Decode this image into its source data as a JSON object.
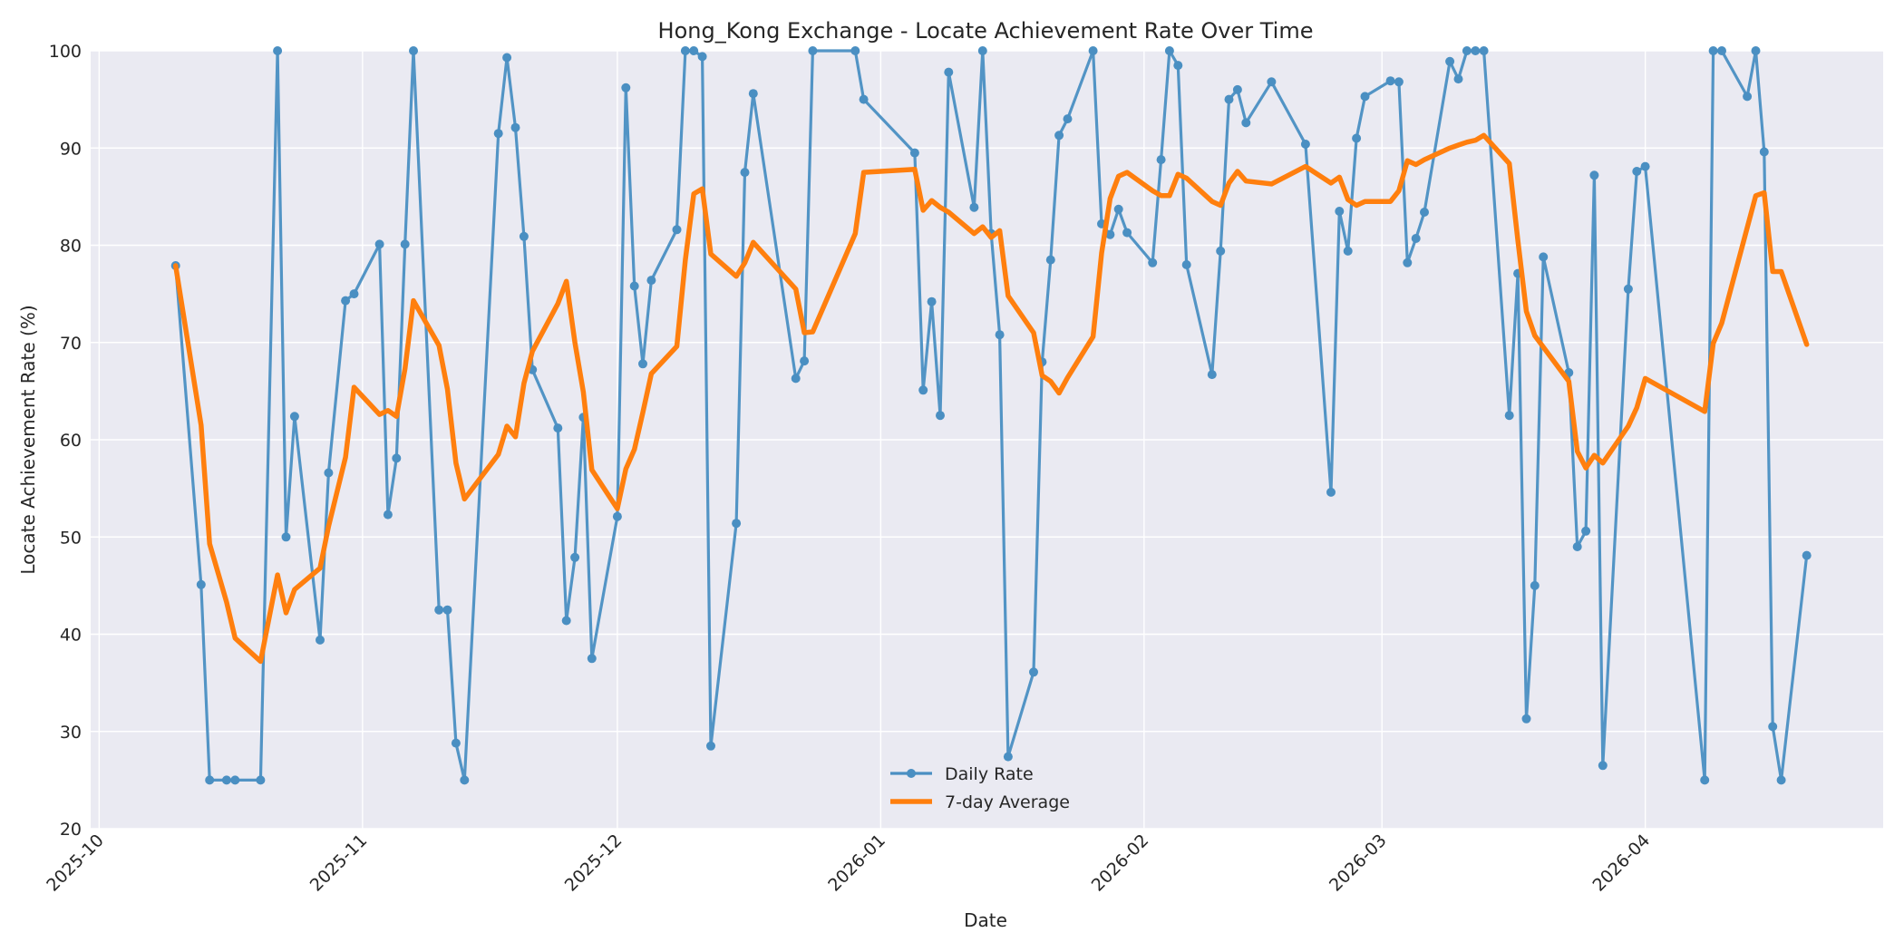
{
  "chart_data": {
    "type": "line",
    "title": "Hong_Kong Exchange - Locate Achievement Rate Over Time",
    "xlabel": "Date",
    "ylabel": "Locate Achievement Rate (%)",
    "ylim": [
      20,
      100
    ],
    "yticks": [
      "20",
      "30",
      "40",
      "50",
      "60",
      "70",
      "80",
      "90",
      "100"
    ],
    "xlim": [
      "2025-09-30",
      "2026-04-29"
    ],
    "xticks": [
      {
        "date": "2025-10-01",
        "label": "2025-10"
      },
      {
        "date": "2025-11-01",
        "label": "2025-11"
      },
      {
        "date": "2025-12-01",
        "label": "2025-12"
      },
      {
        "date": "2026-01-01",
        "label": "2026-01"
      },
      {
        "date": "2026-02-01",
        "label": "2026-02"
      },
      {
        "date": "2026-03-01",
        "label": "2026-03"
      },
      {
        "date": "2026-04-01",
        "label": "2026-04"
      }
    ],
    "grid": true,
    "legend": "bottom-center",
    "series": [
      {
        "name": "Daily Rate",
        "color": "#4a8fc2",
        "marker": "circle",
        "points": [
          [
            "2025-10-10",
            77.9
          ],
          [
            "2025-10-13",
            45.1
          ],
          [
            "2025-10-14",
            25.0
          ],
          [
            "2025-10-16",
            25.0
          ],
          [
            "2025-10-17",
            25.0
          ],
          [
            "2025-10-20",
            25.0
          ],
          [
            "2025-10-22",
            100.0
          ],
          [
            "2025-10-23",
            50.0
          ],
          [
            "2025-10-24",
            62.4
          ],
          [
            "2025-10-27",
            39.4
          ],
          [
            "2025-10-28",
            56.6
          ],
          [
            "2025-10-30",
            74.3
          ],
          [
            "2025-10-31",
            75.0
          ],
          [
            "2025-11-03",
            80.1
          ],
          [
            "2025-11-04",
            52.3
          ],
          [
            "2025-11-05",
            58.1
          ],
          [
            "2025-11-06",
            80.1
          ],
          [
            "2025-11-07",
            100.0
          ],
          [
            "2025-11-10",
            42.5
          ],
          [
            "2025-11-11",
            42.5
          ],
          [
            "2025-11-12",
            28.8
          ],
          [
            "2025-11-13",
            25.0
          ],
          [
            "2025-11-17",
            91.5
          ],
          [
            "2025-11-18",
            99.3
          ],
          [
            "2025-11-19",
            92.1
          ],
          [
            "2025-11-20",
            80.9
          ],
          [
            "2025-11-21",
            67.2
          ],
          [
            "2025-11-24",
            61.2
          ],
          [
            "2025-11-25",
            41.4
          ],
          [
            "2025-11-26",
            47.9
          ],
          [
            "2025-11-27",
            62.3
          ],
          [
            "2025-11-28",
            37.5
          ],
          [
            "2025-12-01",
            52.1
          ],
          [
            "2025-12-02",
            96.2
          ],
          [
            "2025-12-03",
            75.8
          ],
          [
            "2025-12-04",
            67.8
          ],
          [
            "2025-12-05",
            76.4
          ],
          [
            "2025-12-08",
            81.6
          ],
          [
            "2025-12-09",
            100.0
          ],
          [
            "2025-12-10",
            100.0
          ],
          [
            "2025-12-11",
            99.4
          ],
          [
            "2025-12-12",
            28.5
          ],
          [
            "2025-12-15",
            51.4
          ],
          [
            "2025-12-16",
            87.5
          ],
          [
            "2025-12-17",
            95.6
          ],
          [
            "2025-12-22",
            66.3
          ],
          [
            "2025-12-23",
            68.1
          ],
          [
            "2025-12-24",
            100.0
          ],
          [
            "2025-12-29",
            100.0
          ],
          [
            "2025-12-30",
            95.0
          ],
          [
            "2026-01-05",
            89.5
          ],
          [
            "2026-01-06",
            65.1
          ],
          [
            "2026-01-07",
            74.2
          ],
          [
            "2026-01-08",
            62.5
          ],
          [
            "2026-01-09",
            97.8
          ],
          [
            "2026-01-12",
            83.9
          ],
          [
            "2026-01-13",
            100.0
          ],
          [
            "2026-01-14",
            81.2
          ],
          [
            "2026-01-15",
            70.8
          ],
          [
            "2026-01-16",
            27.4
          ],
          [
            "2026-01-19",
            36.1
          ],
          [
            "2026-01-20",
            68.0
          ],
          [
            "2026-01-21",
            78.5
          ],
          [
            "2026-01-22",
            91.3
          ],
          [
            "2026-01-23",
            93.0
          ],
          [
            "2026-01-26",
            100.0
          ],
          [
            "2026-01-27",
            82.2
          ],
          [
            "2026-01-28",
            81.1
          ],
          [
            "2026-01-29",
            83.7
          ],
          [
            "2026-01-30",
            81.3
          ],
          [
            "2026-02-02",
            78.2
          ],
          [
            "2026-02-03",
            88.8
          ],
          [
            "2026-02-04",
            100.0
          ],
          [
            "2026-02-05",
            98.5
          ],
          [
            "2026-02-06",
            78.0
          ],
          [
            "2026-02-09",
            66.7
          ],
          [
            "2026-02-10",
            79.4
          ],
          [
            "2026-02-11",
            95.0
          ],
          [
            "2026-02-12",
            96.0
          ],
          [
            "2026-02-13",
            92.6
          ],
          [
            "2026-02-16",
            96.8
          ],
          [
            "2026-02-20",
            90.4
          ],
          [
            "2026-02-23",
            54.6
          ],
          [
            "2026-02-24",
            83.5
          ],
          [
            "2026-02-25",
            79.4
          ],
          [
            "2026-02-26",
            91.0
          ],
          [
            "2026-02-27",
            95.3
          ],
          [
            "2026-03-02",
            96.9
          ],
          [
            "2026-03-03",
            96.8
          ],
          [
            "2026-03-04",
            78.2
          ],
          [
            "2026-03-05",
            80.7
          ],
          [
            "2026-03-06",
            83.4
          ],
          [
            "2026-03-09",
            98.9
          ],
          [
            "2026-03-10",
            97.1
          ],
          [
            "2026-03-11",
            100.0
          ],
          [
            "2026-03-12",
            100.0
          ],
          [
            "2026-03-13",
            100.0
          ],
          [
            "2026-03-16",
            62.5
          ],
          [
            "2026-03-17",
            77.1
          ],
          [
            "2026-03-18",
            31.3
          ],
          [
            "2026-03-19",
            45.0
          ],
          [
            "2026-03-20",
            78.8
          ],
          [
            "2026-03-23",
            66.9
          ],
          [
            "2026-03-24",
            49.0
          ],
          [
            "2026-03-25",
            50.6
          ],
          [
            "2026-03-26",
            87.2
          ],
          [
            "2026-03-27",
            26.5
          ],
          [
            "2026-03-30",
            75.5
          ],
          [
            "2026-03-31",
            87.6
          ],
          [
            "2026-04-01",
            88.1
          ],
          [
            "2026-04-08",
            25.0
          ],
          [
            "2026-04-09",
            100.0
          ],
          [
            "2026-04-10",
            100.0
          ],
          [
            "2026-04-13",
            95.3
          ],
          [
            "2026-04-14",
            100.0
          ],
          [
            "2026-04-15",
            89.6
          ],
          [
            "2026-04-16",
            30.5
          ],
          [
            "2026-04-17",
            25.0
          ],
          [
            "2026-04-20",
            48.1
          ]
        ]
      },
      {
        "name": "7-day Average",
        "color": "#ff7f0e",
        "marker": "none",
        "points": [
          [
            "2025-10-10",
            77.9
          ],
          [
            "2025-10-13",
            61.5
          ],
          [
            "2025-10-14",
            49.3
          ],
          [
            "2025-10-16",
            43.3
          ],
          [
            "2025-10-17",
            39.6
          ],
          [
            "2025-10-20",
            37.2
          ],
          [
            "2025-10-22",
            46.1
          ],
          [
            "2025-10-23",
            42.2
          ],
          [
            "2025-10-24",
            44.6
          ],
          [
            "2025-10-27",
            46.8
          ],
          [
            "2025-10-28",
            51.1
          ],
          [
            "2025-10-30",
            58.2
          ],
          [
            "2025-10-31",
            65.4
          ],
          [
            "2025-11-03",
            62.6
          ],
          [
            "2025-11-04",
            63.0
          ],
          [
            "2025-11-05",
            62.4
          ],
          [
            "2025-11-06",
            67.3
          ],
          [
            "2025-11-07",
            74.3
          ],
          [
            "2025-11-10",
            69.7
          ],
          [
            "2025-11-11",
            65.2
          ],
          [
            "2025-11-12",
            57.6
          ],
          [
            "2025-11-13",
            53.9
          ],
          [
            "2025-11-17",
            58.5
          ],
          [
            "2025-11-18",
            61.4
          ],
          [
            "2025-11-19",
            60.3
          ],
          [
            "2025-11-20",
            65.8
          ],
          [
            "2025-11-21",
            69.1
          ],
          [
            "2025-11-24",
            74.0
          ],
          [
            "2025-11-25",
            76.3
          ],
          [
            "2025-11-26",
            70.0
          ],
          [
            "2025-11-27",
            64.9
          ],
          [
            "2025-11-28",
            56.9
          ],
          [
            "2025-12-01",
            52.9
          ],
          [
            "2025-12-02",
            57.0
          ],
          [
            "2025-12-03",
            59.0
          ],
          [
            "2025-12-04",
            62.8
          ],
          [
            "2025-12-05",
            66.8
          ],
          [
            "2025-12-08",
            69.6
          ],
          [
            "2025-12-09",
            78.5
          ],
          [
            "2025-12-10",
            85.3
          ],
          [
            "2025-12-11",
            85.8
          ],
          [
            "2025-12-12",
            79.1
          ],
          [
            "2025-12-15",
            76.8
          ],
          [
            "2025-12-16",
            78.2
          ],
          [
            "2025-12-17",
            80.3
          ],
          [
            "2025-12-22",
            75.5
          ],
          [
            "2025-12-23",
            71.0
          ],
          [
            "2025-12-24",
            71.1
          ],
          [
            "2025-12-29",
            81.2
          ],
          [
            "2025-12-30",
            87.5
          ],
          [
            "2026-01-05",
            87.8
          ],
          [
            "2026-01-06",
            83.6
          ],
          [
            "2026-01-07",
            84.6
          ],
          [
            "2026-01-08",
            83.9
          ],
          [
            "2026-01-09",
            83.4
          ],
          [
            "2026-01-12",
            81.2
          ],
          [
            "2026-01-13",
            81.9
          ],
          [
            "2026-01-14",
            80.8
          ],
          [
            "2026-01-15",
            81.5
          ],
          [
            "2026-01-16",
            74.8
          ],
          [
            "2026-01-19",
            71.0
          ],
          [
            "2026-01-20",
            66.6
          ],
          [
            "2026-01-21",
            66.0
          ],
          [
            "2026-01-22",
            64.8
          ],
          [
            "2026-01-23",
            66.4
          ],
          [
            "2026-01-26",
            70.6
          ],
          [
            "2026-01-27",
            79.2
          ],
          [
            "2026-01-28",
            84.8
          ],
          [
            "2026-01-29",
            87.1
          ],
          [
            "2026-01-30",
            87.5
          ],
          [
            "2026-02-02",
            85.6
          ],
          [
            "2026-02-03",
            85.1
          ],
          [
            "2026-02-04",
            85.1
          ],
          [
            "2026-02-05",
            87.3
          ],
          [
            "2026-02-06",
            86.9
          ],
          [
            "2026-02-09",
            84.5
          ],
          [
            "2026-02-10",
            84.1
          ],
          [
            "2026-02-11",
            86.4
          ],
          [
            "2026-02-12",
            87.6
          ],
          [
            "2026-02-13",
            86.6
          ],
          [
            "2026-02-16",
            86.3
          ],
          [
            "2026-02-20",
            88.1
          ],
          [
            "2026-02-23",
            86.4
          ],
          [
            "2026-02-24",
            87.0
          ],
          [
            "2026-02-25",
            84.7
          ],
          [
            "2026-02-26",
            84.1
          ],
          [
            "2026-02-27",
            84.5
          ],
          [
            "2026-03-02",
            84.5
          ],
          [
            "2026-03-03",
            85.6
          ],
          [
            "2026-03-04",
            88.7
          ],
          [
            "2026-03-05",
            88.3
          ],
          [
            "2026-03-06",
            88.8
          ],
          [
            "2026-03-09",
            90.0
          ],
          [
            "2026-03-10",
            90.3
          ],
          [
            "2026-03-11",
            90.6
          ],
          [
            "2026-03-12",
            90.8
          ],
          [
            "2026-03-13",
            91.3
          ],
          [
            "2026-03-16",
            88.4
          ],
          [
            "2026-03-17",
            80.5
          ],
          [
            "2026-03-18",
            73.2
          ],
          [
            "2026-03-19",
            70.7
          ],
          [
            "2026-03-23",
            66.0
          ],
          [
            "2026-03-24",
            58.8
          ],
          [
            "2026-03-25",
            57.1
          ],
          [
            "2026-03-26",
            58.4
          ],
          [
            "2026-03-27",
            57.6
          ],
          [
            "2026-03-30",
            61.4
          ],
          [
            "2026-03-31",
            63.3
          ],
          [
            "2026-04-01",
            66.3
          ],
          [
            "2026-04-08",
            62.9
          ],
          [
            "2026-04-09",
            69.9
          ],
          [
            "2026-04-10",
            72.0
          ],
          [
            "2026-04-14",
            85.1
          ],
          [
            "2026-04-15",
            85.4
          ],
          [
            "2026-04-16",
            77.3
          ],
          [
            "2026-04-17",
            77.3
          ],
          [
            "2026-04-20",
            69.8
          ]
        ]
      }
    ]
  }
}
